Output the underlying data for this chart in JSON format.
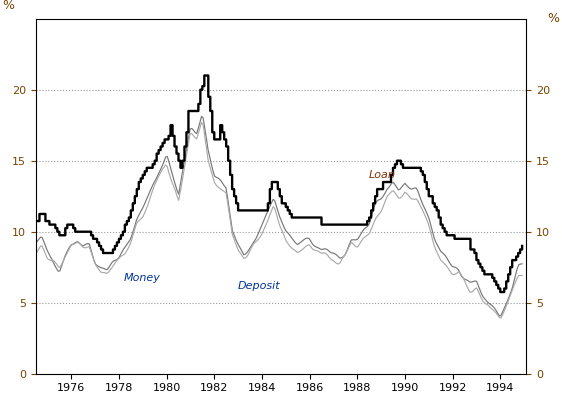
{
  "ylabel_left": "%",
  "ylabel_right": "%",
  "ylim": [
    0,
    25
  ],
  "yticks": [
    0,
    5,
    10,
    15,
    20
  ],
  "xlim_start": 1974.5,
  "xlim_end": 1995.1,
  "xticks": [
    1976,
    1978,
    1980,
    1982,
    1984,
    1986,
    1988,
    1990,
    1992,
    1994
  ],
  "money_label": "Money",
  "deposit_label": "Deposit",
  "loan_label": "Loan",
  "money_color": "#777777",
  "deposit_color": "#aaaaaa",
  "loan_color": "#000000",
  "background_color": "#ffffff",
  "grid_color": "#999999"
}
